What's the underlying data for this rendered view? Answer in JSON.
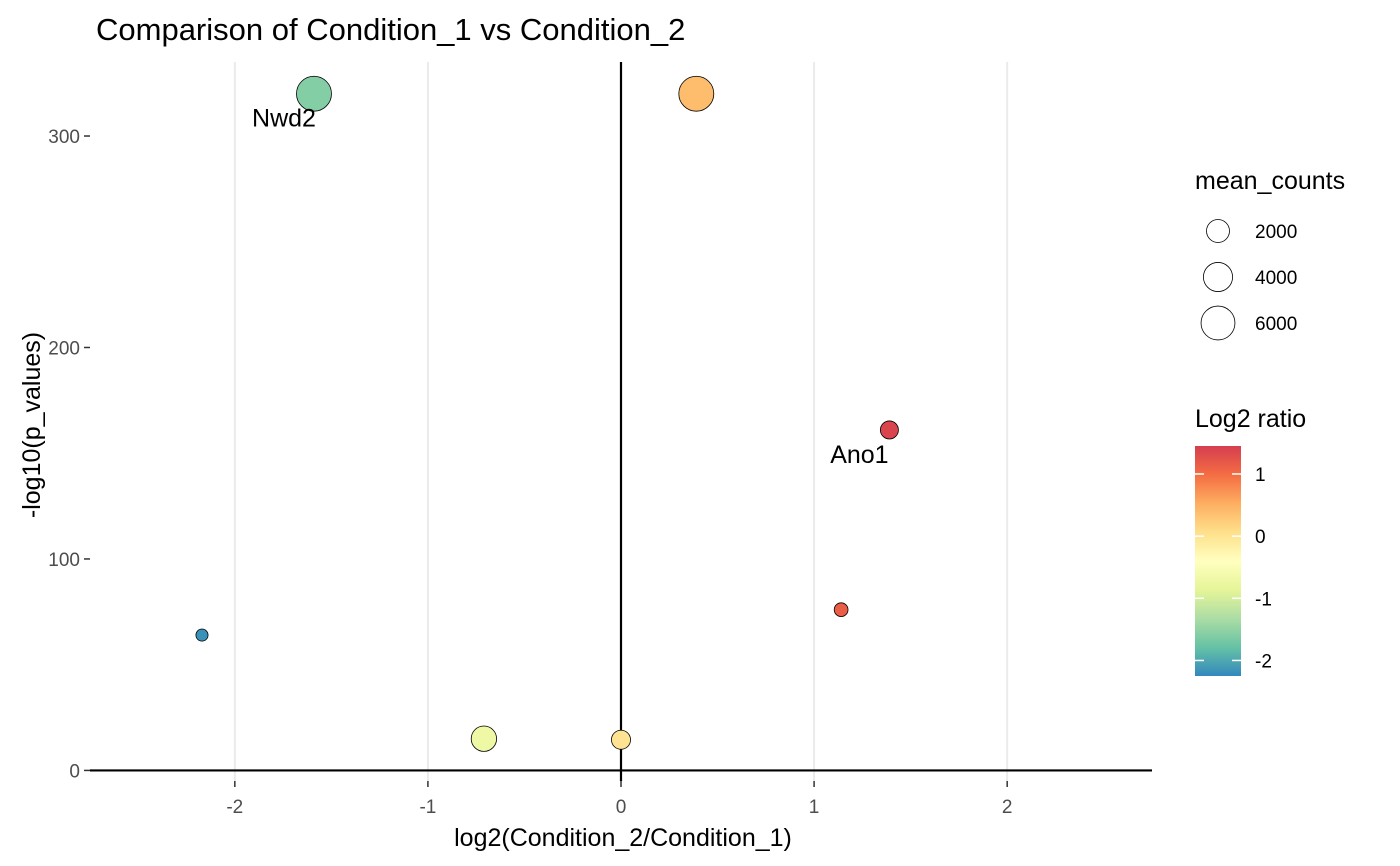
{
  "chart_data": {
    "type": "scatter",
    "title": "Comparison of Condition_1 vs Condition_2",
    "xlabel": "log2(Condition_2/Condition_1)",
    "ylabel": "-log10(p_values)",
    "xlim": [
      -2.75,
      2.75
    ],
    "ylim": [
      -5,
      335
    ],
    "xticks": [
      -2,
      -1,
      0,
      1,
      2
    ],
    "xtick_labels": [
      "-2",
      "-1",
      "0",
      "1",
      "2"
    ],
    "yticks": [
      0,
      100,
      200,
      300
    ],
    "ytick_labels": [
      "0",
      "100",
      "200",
      "300"
    ],
    "grid": "vertical major gridlines",
    "reference_lines": {
      "x": 0,
      "y": 0
    },
    "points": [
      {
        "x": -1.59,
        "y": 320,
        "mean_counts": 6500,
        "log2_ratio": -1.59,
        "label": "Nwd2"
      },
      {
        "x": 0.39,
        "y": 320,
        "mean_counts": 6500,
        "log2_ratio": 0.39,
        "label": ""
      },
      {
        "x": 1.39,
        "y": 161,
        "mean_counts": 900,
        "log2_ratio": 1.39,
        "label": "Ano1"
      },
      {
        "x": 1.14,
        "y": 76,
        "mean_counts": 300,
        "log2_ratio": 1.14,
        "label": ""
      },
      {
        "x": -2.17,
        "y": 64,
        "mean_counts": 150,
        "log2_ratio": -2.17,
        "label": ""
      },
      {
        "x": -0.71,
        "y": 15,
        "mean_counts": 2700,
        "log2_ratio": -0.71,
        "label": ""
      },
      {
        "x": 0.0,
        "y": 14.5,
        "mean_counts": 1100,
        "log2_ratio": 0.0,
        "label": ""
      }
    ],
    "size_legend": {
      "title": "mean_counts",
      "entries": [
        {
          "value": 2000,
          "label": "2000"
        },
        {
          "value": 4000,
          "label": "4000"
        },
        {
          "value": 6000,
          "label": "6000"
        }
      ]
    },
    "color_legend": {
      "title": "Log2 ratio",
      "palette": "Spectral",
      "range": [
        -2.25,
        1.45
      ],
      "ticks": [
        1,
        0,
        -1,
        -2
      ],
      "tick_labels": [
        "1",
        "0",
        "-1",
        "-2"
      ],
      "colors": [
        "#3288bd",
        "#66c2a5",
        "#abdda4",
        "#e6f598",
        "#ffffbf",
        "#fee08b",
        "#fdae61",
        "#f46d43",
        "#d53e4f"
      ]
    },
    "legend_position": "right"
  }
}
